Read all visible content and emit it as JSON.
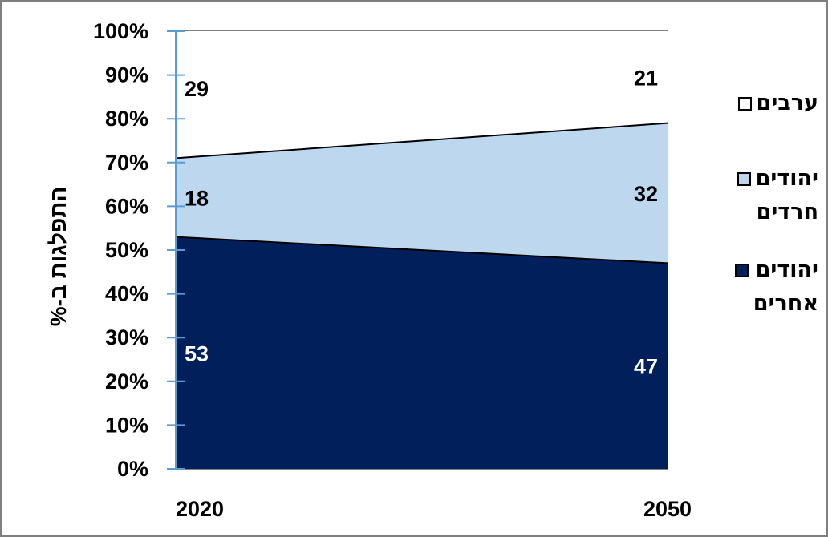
{
  "chart_data": {
    "type": "area",
    "stacked": true,
    "x": [
      "2020",
      "2050"
    ],
    "series": [
      {
        "name": "יהודים אחרים",
        "values": [
          53,
          47
        ],
        "color": "#001F5B",
        "label_color": "#FFFFFF"
      },
      {
        "name": "יהודים חרדים",
        "values": [
          18,
          32
        ],
        "color": "#BDD7EE",
        "label_color": "#000000"
      },
      {
        "name": "ערבים",
        "values": [
          29,
          21
        ],
        "color": "#FFFFFF",
        "label_color": "#000000"
      }
    ],
    "ylabel": "התפלגות ב-%",
    "ylim": [
      0,
      100
    ],
    "ytick_values": [
      0,
      10,
      20,
      30,
      40,
      50,
      60,
      70,
      80,
      90,
      100
    ],
    "ytick_labels": [
      "0%",
      "10%",
      "20%",
      "30%",
      "40%",
      "50%",
      "60%",
      "70%",
      "80%",
      "90%",
      "100%"
    ],
    "grid": false,
    "legend_position": "right"
  },
  "legend": {
    "items": [
      {
        "label": "ערבים",
        "color": "#FFFFFF"
      },
      {
        "label": "יהודים\nחרדים",
        "color": "#BDD7EE"
      },
      {
        "label": "יהודים\nאחרים",
        "color": "#001F5B"
      }
    ]
  },
  "colors": {
    "axis": "#5B9BD5",
    "border": "#7F7F7F",
    "series_edge": "#000000"
  }
}
